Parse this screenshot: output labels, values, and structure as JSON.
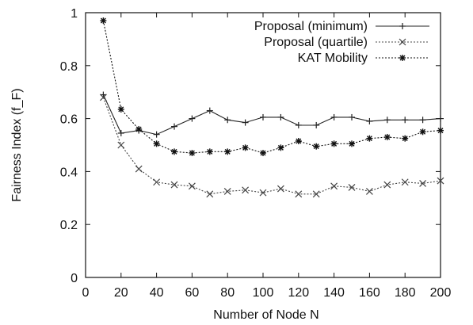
{
  "chart_data": {
    "type": "line",
    "title": "",
    "xlabel": "Number of Node N",
    "ylabel": "Fairness Index (f_F)",
    "xlim": [
      0,
      200
    ],
    "ylim": [
      0,
      1
    ],
    "xticks": [
      0,
      20,
      40,
      60,
      80,
      100,
      120,
      140,
      160,
      180,
      200
    ],
    "yticks": [
      0,
      0.2,
      0.4,
      0.6,
      0.8,
      1
    ],
    "ytick_labels": [
      "0",
      "0.2",
      "0.4",
      "0.6",
      "0.8",
      "1"
    ],
    "grid": false,
    "legend_position": "top-right",
    "x": [
      10,
      20,
      30,
      40,
      50,
      60,
      70,
      80,
      90,
      100,
      110,
      120,
      130,
      140,
      150,
      160,
      170,
      180,
      190,
      200
    ],
    "series": [
      {
        "name": "Proposal (minimum)",
        "marker": "plus",
        "line": "solid",
        "color": "#222222",
        "values": [
          0.69,
          0.545,
          0.555,
          0.54,
          0.57,
          0.6,
          0.63,
          0.595,
          0.585,
          0.605,
          0.605,
          0.575,
          0.575,
          0.605,
          0.605,
          0.59,
          0.595,
          0.595,
          0.595,
          0.6
        ]
      },
      {
        "name": "Proposal (quartile)",
        "marker": "x",
        "line": "dotted",
        "color": "#444444",
        "values": [
          0.68,
          0.5,
          0.41,
          0.36,
          0.35,
          0.345,
          0.315,
          0.325,
          0.33,
          0.32,
          0.335,
          0.315,
          0.315,
          0.345,
          0.34,
          0.325,
          0.35,
          0.36,
          0.355,
          0.365
        ]
      },
      {
        "name": "KAT Mobility",
        "marker": "star",
        "line": "dotted",
        "color": "#111111",
        "values": [
          0.97,
          0.635,
          0.56,
          0.505,
          0.475,
          0.47,
          0.475,
          0.475,
          0.49,
          0.47,
          0.49,
          0.515,
          0.495,
          0.505,
          0.505,
          0.525,
          0.53,
          0.525,
          0.55,
          0.555
        ]
      }
    ]
  }
}
